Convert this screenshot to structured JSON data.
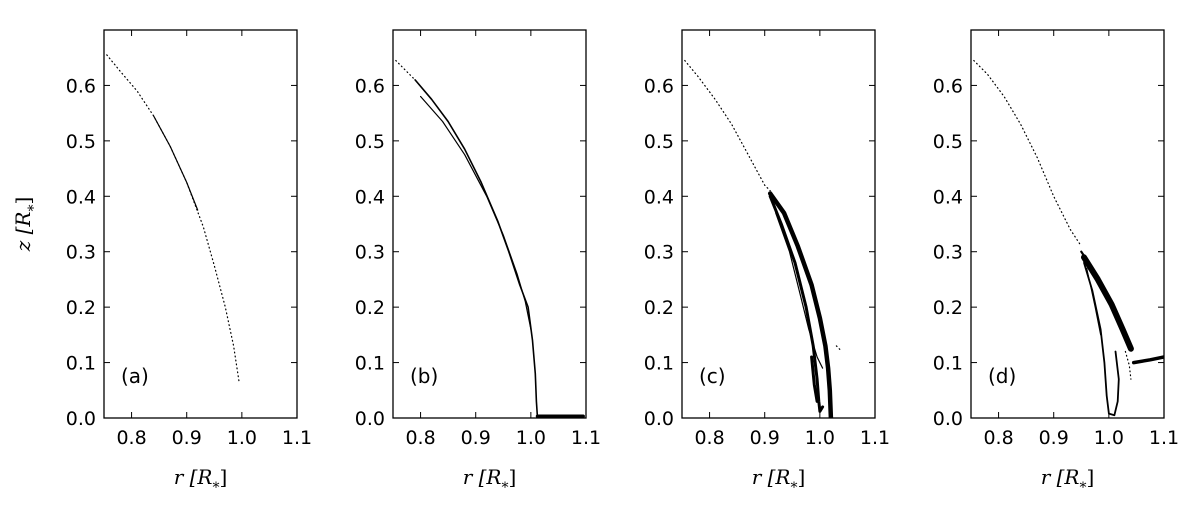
{
  "chart_data": [
    {
      "type": "scatter",
      "panel_label": "(a)",
      "xlabel": "r [R*]",
      "ylabel": "z [R*]",
      "xlim": [
        0.75,
        1.1
      ],
      "ylim": [
        0.0,
        0.7
      ],
      "xticks": [
        "0.8",
        "0.9",
        "1.0",
        "1.1"
      ],
      "yticks": [
        "0.0",
        "0.1",
        "0.2",
        "0.3",
        "0.4",
        "0.5",
        "0.6"
      ],
      "series": [
        {
          "style": "dotted",
          "points": [
            [
              0.755,
              0.655
            ],
            [
              0.78,
              0.625
            ],
            [
              0.81,
              0.59
            ],
            [
              0.84,
              0.545
            ],
            [
              0.87,
              0.49
            ],
            [
              0.9,
              0.425
            ],
            [
              0.93,
              0.345
            ],
            [
              0.95,
              0.275
            ],
            [
              0.97,
              0.2
            ],
            [
              0.985,
              0.13
            ],
            [
              0.995,
              0.065
            ]
          ]
        },
        {
          "style": "solid",
          "width": 1.2,
          "points": [
            [
              0.84,
              0.545
            ],
            [
              0.87,
              0.49
            ],
            [
              0.9,
              0.425
            ],
            [
              0.92,
              0.375
            ]
          ]
        }
      ]
    },
    {
      "type": "scatter",
      "panel_label": "(b)",
      "xlabel": "r [R*]",
      "ylabel": "",
      "xlim": [
        0.75,
        1.1
      ],
      "ylim": [
        0.0,
        0.7
      ],
      "xticks": [
        "0.8",
        "0.9",
        "1.0",
        "1.1"
      ],
      "yticks": [
        "0.0",
        "0.1",
        "0.2",
        "0.3",
        "0.4",
        "0.5",
        "0.6"
      ],
      "series": [
        {
          "style": "dotted",
          "points": [
            [
              0.755,
              0.645
            ],
            [
              0.77,
              0.63
            ],
            [
              0.79,
              0.61
            ]
          ]
        },
        {
          "style": "solid",
          "width": 1.6,
          "points": [
            [
              0.79,
              0.61
            ],
            [
              0.82,
              0.575
            ],
            [
              0.85,
              0.535
            ],
            [
              0.88,
              0.485
            ],
            [
              0.91,
              0.425
            ],
            [
              0.94,
              0.355
            ],
            [
              0.96,
              0.3
            ],
            [
              0.98,
              0.24
            ],
            [
              0.995,
              0.2
            ],
            [
              1.003,
              0.14
            ],
            [
              1.008,
              0.08
            ],
            [
              1.01,
              0.03
            ],
            [
              1.012,
              0.0
            ]
          ]
        },
        {
          "style": "solid",
          "width": 1.2,
          "points": [
            [
              0.8,
              0.58
            ],
            [
              0.84,
              0.535
            ],
            [
              0.88,
              0.475
            ],
            [
              0.92,
              0.4
            ],
            [
              0.95,
              0.33
            ],
            [
              0.975,
              0.26
            ],
            [
              0.99,
              0.21
            ],
            [
              1.0,
              0.16
            ]
          ]
        },
        {
          "style": "solid",
          "width": 3.5,
          "points": [
            [
              1.012,
              0.003
            ],
            [
              1.095,
              0.003
            ]
          ]
        }
      ]
    },
    {
      "type": "scatter",
      "panel_label": "(c)",
      "xlabel": "r [R*]",
      "ylabel": "",
      "xlim": [
        0.75,
        1.1
      ],
      "ylim": [
        0.0,
        0.7
      ],
      "xticks": [
        "0.8",
        "0.9",
        "1.0",
        "1.1"
      ],
      "yticks": [
        "0.0",
        "0.1",
        "0.2",
        "0.3",
        "0.4",
        "0.5",
        "0.6"
      ],
      "series": [
        {
          "style": "dotted",
          "points": [
            [
              0.755,
              0.645
            ],
            [
              0.78,
              0.615
            ],
            [
              0.81,
              0.575
            ],
            [
              0.84,
              0.53
            ],
            [
              0.87,
              0.475
            ],
            [
              0.9,
              0.42
            ],
            [
              0.91,
              0.41
            ]
          ]
        },
        {
          "style": "solid",
          "width": 4.5,
          "points": [
            [
              0.91,
              0.405
            ],
            [
              0.935,
              0.37
            ],
            [
              0.96,
              0.31
            ],
            [
              0.985,
              0.24
            ],
            [
              1.0,
              0.18
            ],
            [
              1.01,
              0.13
            ],
            [
              1.015,
              0.09
            ],
            [
              1.018,
              0.05
            ],
            [
              1.02,
              0.0
            ]
          ]
        },
        {
          "style": "solid",
          "width": 3.0,
          "points": [
            [
              0.91,
              0.4
            ],
            [
              0.93,
              0.35
            ],
            [
              0.955,
              0.28
            ],
            [
              0.975,
              0.2
            ],
            [
              0.988,
              0.13
            ],
            [
              0.995,
              0.07
            ],
            [
              0.998,
              0.03
            ],
            [
              1.0,
              0.012
            ],
            [
              1.005,
              0.02
            ]
          ]
        },
        {
          "style": "solid",
          "width": 1.2,
          "points": [
            [
              0.92,
              0.37
            ],
            [
              0.945,
              0.3
            ],
            [
              0.965,
              0.22
            ],
            [
              0.98,
              0.16
            ],
            [
              0.995,
              0.11
            ],
            [
              1.005,
              0.09
            ]
          ]
        },
        {
          "style": "solid",
          "width": 3.0,
          "points": [
            [
              0.985,
              0.11
            ],
            [
              0.99,
              0.06
            ],
            [
              0.995,
              0.03
            ]
          ]
        },
        {
          "style": "dotted",
          "points": [
            [
              1.03,
              0.13
            ],
            [
              1.04,
              0.12
            ]
          ]
        }
      ]
    },
    {
      "type": "scatter",
      "panel_label": "(d)",
      "xlabel": "r [R*]",
      "ylabel": "",
      "xlim": [
        0.75,
        1.1
      ],
      "ylim": [
        0.0,
        0.7
      ],
      "xticks": [
        "0.8",
        "0.9",
        "1.0",
        "1.1"
      ],
      "yticks": [
        "0.0",
        "0.1",
        "0.2",
        "0.3",
        "0.4",
        "0.5",
        "0.6"
      ],
      "series": [
        {
          "style": "dotted",
          "points": [
            [
              0.755,
              0.645
            ],
            [
              0.78,
              0.62
            ],
            [
              0.81,
              0.58
            ],
            [
              0.84,
              0.53
            ],
            [
              0.87,
              0.47
            ],
            [
              0.9,
              0.4
            ],
            [
              0.93,
              0.34
            ],
            [
              0.95,
              0.31
            ]
          ]
        },
        {
          "style": "solid",
          "width": 6.0,
          "points": [
            [
              0.955,
              0.29
            ],
            [
              0.98,
              0.25
            ],
            [
              1.005,
              0.205
            ],
            [
              1.025,
              0.16
            ],
            [
              1.04,
              0.125
            ]
          ]
        },
        {
          "style": "solid",
          "width": 2.2,
          "points": [
            [
              0.95,
              0.3
            ],
            [
              0.97,
              0.27
            ],
            [
              0.995,
              0.22
            ],
            [
              1.015,
              0.18
            ],
            [
              1.035,
              0.135
            ]
          ]
        },
        {
          "style": "solid",
          "width": 1.8,
          "points": [
            [
              0.955,
              0.28
            ],
            [
              0.97,
              0.23
            ],
            [
              0.985,
              0.16
            ],
            [
              0.992,
              0.1
            ],
            [
              0.996,
              0.04
            ],
            [
              1.0,
              0.008
            ],
            [
              1.01,
              0.005
            ],
            [
              1.016,
              0.03
            ],
            [
              1.018,
              0.07
            ],
            [
              1.012,
              0.12
            ]
          ]
        },
        {
          "style": "solid",
          "width": 1.0,
          "points": [
            [
              0.96,
              0.27
            ],
            [
              0.975,
              0.2
            ],
            [
              0.985,
              0.15
            ]
          ]
        },
        {
          "style": "solid",
          "width": 3.5,
          "points": [
            [
              1.045,
              0.1
            ],
            [
              1.075,
              0.105
            ],
            [
              1.1,
              0.11
            ]
          ]
        },
        {
          "style": "dotted",
          "points": [
            [
              1.03,
              0.12
            ],
            [
              1.037,
              0.095
            ],
            [
              1.04,
              0.07
            ]
          ]
        }
      ]
    }
  ]
}
